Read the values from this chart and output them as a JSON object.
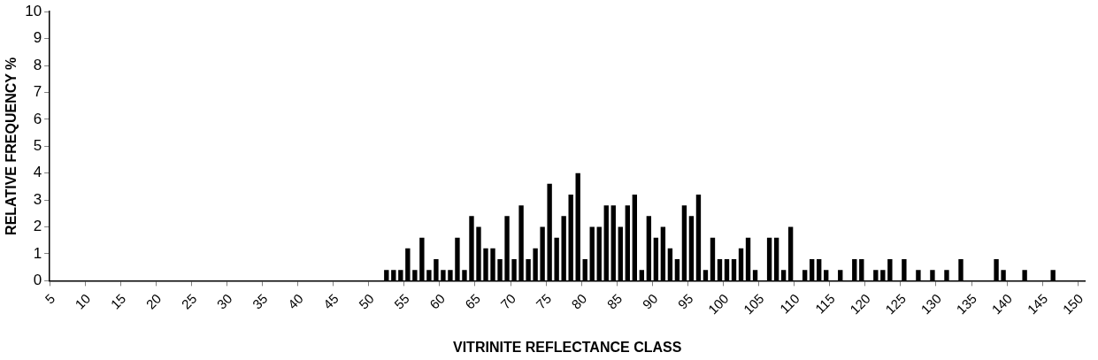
{
  "chart_data": {
    "type": "bar",
    "xlabel": "VITRINITE REFLECTANCE CLASS",
    "ylabel": "RELATIVE FREQUENCY %",
    "categories": [
      "5",
      null,
      null,
      null,
      null,
      "10",
      null,
      null,
      null,
      null,
      "15",
      null,
      null,
      null,
      null,
      "20",
      null,
      null,
      null,
      null,
      "25",
      null,
      null,
      null,
      null,
      "30",
      null,
      null,
      null,
      null,
      "35",
      null,
      null,
      null,
      null,
      "40",
      null,
      null,
      null,
      null,
      "45",
      null,
      null,
      null,
      null,
      "50",
      null,
      null,
      null,
      null,
      "55",
      null,
      null,
      null,
      null,
      "60",
      null,
      null,
      null,
      null,
      "65",
      null,
      null,
      null,
      null,
      "70",
      null,
      null,
      null,
      null,
      "75",
      null,
      null,
      null,
      null,
      "80",
      null,
      null,
      null,
      null,
      "85",
      null,
      null,
      null,
      null,
      "90",
      null,
      null,
      null,
      null,
      "95",
      null,
      null,
      null,
      null,
      "100",
      null,
      null,
      null,
      null,
      "105",
      null,
      null,
      null,
      null,
      "110",
      null,
      null,
      null,
      null,
      "115",
      null,
      null,
      null,
      null,
      "120",
      null,
      null,
      null,
      null,
      "125",
      null,
      null,
      null,
      null,
      "130",
      null,
      null,
      null,
      null,
      "135",
      null,
      null,
      null,
      null,
      "140",
      null,
      null,
      null,
      null,
      "145",
      null,
      null,
      null,
      null,
      "150"
    ],
    "values": [
      null,
      null,
      null,
      null,
      null,
      null,
      null,
      null,
      null,
      null,
      null,
      null,
      null,
      null,
      null,
      null,
      null,
      null,
      null,
      null,
      null,
      null,
      null,
      null,
      null,
      null,
      null,
      null,
      null,
      null,
      null,
      null,
      null,
      null,
      null,
      null,
      null,
      null,
      null,
      null,
      null,
      null,
      null,
      null,
      null,
      null,
      null,
      0.4,
      0.4,
      0.4,
      1.2,
      0.4,
      1.6,
      0.4,
      0.8,
      0.4,
      0.4,
      1.6,
      0.4,
      2.4,
      2.0,
      1.2,
      1.2,
      0.8,
      2.4,
      0.8,
      2.8,
      0.8,
      1.2,
      2.0,
      3.6,
      1.6,
      2.4,
      3.2,
      4.0,
      0.8,
      2.0,
      2.0,
      2.8,
      2.8,
      2.0,
      2.8,
      3.2,
      0.4,
      2.4,
      1.6,
      2.0,
      1.2,
      0.8,
      2.8,
      2.4,
      3.2,
      0.4,
      1.6,
      0.8,
      0.8,
      0.8,
      1.2,
      1.6,
      0.4,
      null,
      1.6,
      1.6,
      0.4,
      2.0,
      null,
      0.4,
      0.8,
      0.8,
      0.4,
      null,
      0.4,
      null,
      0.8,
      0.8,
      null,
      0.4,
      0.4,
      0.8,
      null,
      0.8,
      null,
      0.4,
      null,
      0.4,
      null,
      0.4,
      null,
      0.8,
      null,
      null,
      null,
      null,
      0.8,
      0.4,
      null,
      null,
      0.4,
      null,
      null,
      null,
      0.4,
      null,
      null,
      null,
      null
    ],
    "color": "#000000",
    "ylim": [
      0,
      10
    ],
    "yticks": [
      0,
      1,
      2,
      3,
      4,
      5,
      6,
      7,
      8,
      9,
      10
    ],
    "grid": false,
    "legend": false
  }
}
